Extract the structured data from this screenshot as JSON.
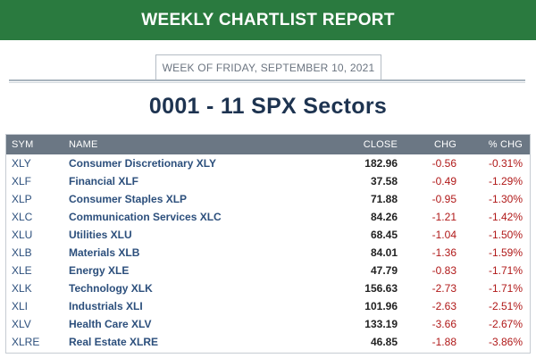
{
  "header": {
    "title": "WEEKLY CHARTLIST REPORT"
  },
  "report": {
    "week_label": "WEEK OF FRIDAY, SEPTEMBER 10, 2021",
    "title": "0001 - 11 SPX Sectors"
  },
  "table": {
    "columns": [
      "SYM",
      "NAME",
      "CLOSE",
      "CHG",
      "% CHG"
    ],
    "rows": [
      {
        "sym": "XLY",
        "name": "Consumer Discretionary XLY",
        "close": "182.96",
        "chg": "-0.56",
        "pct": "-0.31%"
      },
      {
        "sym": "XLF",
        "name": "Financial XLF",
        "close": "37.58",
        "chg": "-0.49",
        "pct": "-1.29%"
      },
      {
        "sym": "XLP",
        "name": "Consumer Staples XLP",
        "close": "71.88",
        "chg": "-0.95",
        "pct": "-1.30%"
      },
      {
        "sym": "XLC",
        "name": "Communication Services XLC",
        "close": "84.26",
        "chg": "-1.21",
        "pct": "-1.42%"
      },
      {
        "sym": "XLU",
        "name": "Utilities XLU",
        "close": "68.45",
        "chg": "-1.04",
        "pct": "-1.50%"
      },
      {
        "sym": "XLB",
        "name": "Materials XLB",
        "close": "84.01",
        "chg": "-1.36",
        "pct": "-1.59%"
      },
      {
        "sym": "XLE",
        "name": "Energy XLE",
        "close": "47.79",
        "chg": "-0.83",
        "pct": "-1.71%"
      },
      {
        "sym": "XLK",
        "name": "Technology XLK",
        "close": "156.63",
        "chg": "-2.73",
        "pct": "-1.71%"
      },
      {
        "sym": "XLI",
        "name": "Industrials XLI",
        "close": "101.96",
        "chg": "-2.63",
        "pct": "-2.51%"
      },
      {
        "sym": "XLV",
        "name": "Health Care XLV",
        "close": "133.19",
        "chg": "-3.66",
        "pct": "-2.67%"
      },
      {
        "sym": "XLRE",
        "name": "Real Estate XLRE",
        "close": "46.85",
        "chg": "-1.88",
        "pct": "-3.86%"
      }
    ]
  },
  "colors": {
    "banner": "#2a7a3f",
    "header_row": "#6b7784",
    "symbol_text": "#2c4f7c",
    "negative": "#b01818",
    "title_text": "#1d3350"
  }
}
